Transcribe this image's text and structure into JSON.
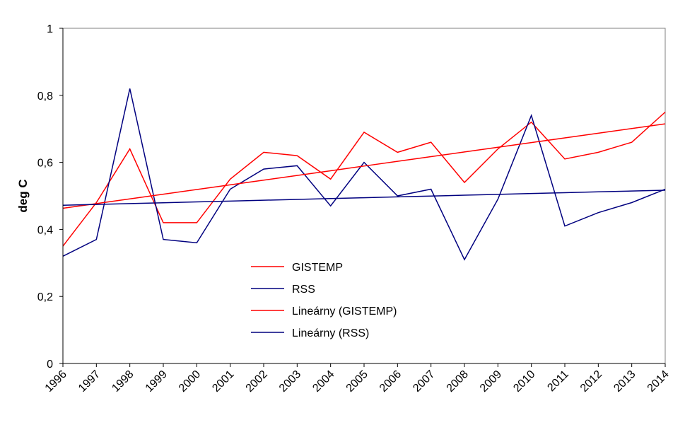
{
  "chart_data": {
    "type": "line",
    "title": "",
    "xlabel": "",
    "ylabel": "deg C",
    "ylim": [
      0,
      1
    ],
    "yticks": [
      "0",
      "0,2",
      "0,4",
      "0,6",
      "0,8",
      "1"
    ],
    "grid": false,
    "legend_position": "center",
    "categories": [
      "1996",
      "1997",
      "1998",
      "1999",
      "2000",
      "2001",
      "2002",
      "2003",
      "2004",
      "2005",
      "2006",
      "2007",
      "2008",
      "2009",
      "2010",
      "2011",
      "2012",
      "2013",
      "2014"
    ],
    "series": [
      {
        "name": "GISTEMP",
        "color": "#ff0000",
        "kind": "data",
        "values": [
          0.35,
          0.48,
          0.64,
          0.42,
          0.42,
          0.55,
          0.63,
          0.62,
          0.55,
          0.69,
          0.63,
          0.66,
          0.54,
          0.64,
          0.72,
          0.61,
          0.63,
          0.66,
          0.75
        ]
      },
      {
        "name": "RSS",
        "color": "#00007f",
        "kind": "data",
        "values": [
          0.32,
          0.37,
          0.82,
          0.37,
          0.36,
          0.52,
          0.58,
          0.59,
          0.47,
          0.6,
          0.5,
          0.52,
          0.31,
          0.49,
          0.74,
          0.41,
          0.45,
          0.48,
          0.52
        ]
      },
      {
        "name": "Lineárny (GISTEMP)",
        "color": "#ff0000",
        "kind": "trend",
        "values": [
          0.463,
          0.477,
          0.491,
          0.505,
          0.519,
          0.533,
          0.547,
          0.561,
          0.575,
          0.589,
          0.603,
          0.617,
          0.631,
          0.645,
          0.659,
          0.673,
          0.687,
          0.701,
          0.715
        ]
      },
      {
        "name": "Lineárny (RSS)",
        "color": "#00007f",
        "kind": "trend",
        "values": [
          0.472,
          0.4745,
          0.477,
          0.4795,
          0.482,
          0.4845,
          0.487,
          0.4895,
          0.492,
          0.4945,
          0.497,
          0.4995,
          0.502,
          0.5045,
          0.507,
          0.5095,
          0.512,
          0.5145,
          0.517
        ]
      }
    ]
  }
}
